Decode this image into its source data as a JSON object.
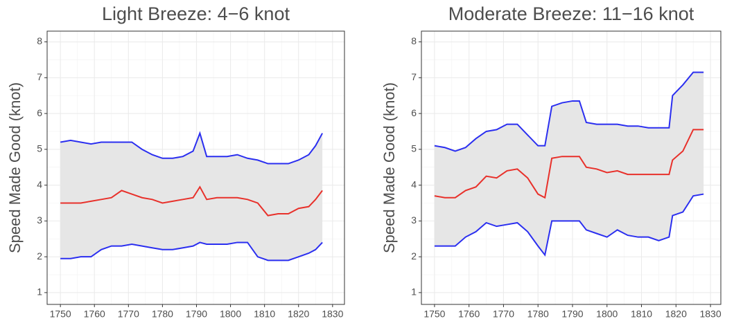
{
  "chart_data": [
    {
      "type": "line",
      "title": "Light Breeze: 4−6 knot",
      "y_label": "Speed Made Good (knot)",
      "x": [
        1750,
        1753,
        1756,
        1759,
        1762,
        1765,
        1768,
        1771,
        1774,
        1777,
        1780,
        1783,
        1786,
        1789,
        1791,
        1793,
        1796,
        1799,
        1802,
        1805,
        1808,
        1811,
        1814,
        1817,
        1820,
        1823,
        1825,
        1827
      ],
      "series": [
        {
          "color": "#2a2ef0",
          "values": [
            5.2,
            5.25,
            5.2,
            5.15,
            5.2,
            5.2,
            5.2,
            5.2,
            5.0,
            4.85,
            4.75,
            4.75,
            4.8,
            4.95,
            5.45,
            4.8,
            4.8,
            4.8,
            4.85,
            4.75,
            4.7,
            4.6,
            4.6,
            4.6,
            4.7,
            4.85,
            5.1,
            5.45
          ]
        },
        {
          "color": "#e8302a",
          "values": [
            3.5,
            3.5,
            3.5,
            3.55,
            3.6,
            3.65,
            3.85,
            3.75,
            3.65,
            3.6,
            3.5,
            3.55,
            3.6,
            3.65,
            3.95,
            3.6,
            3.65,
            3.65,
            3.65,
            3.6,
            3.5,
            3.15,
            3.2,
            3.2,
            3.35,
            3.4,
            3.6,
            3.85
          ]
        },
        {
          "color": "#2a2ef0",
          "values": [
            1.95,
            1.95,
            2.0,
            2.0,
            2.2,
            2.3,
            2.3,
            2.35,
            2.3,
            2.25,
            2.2,
            2.2,
            2.25,
            2.3,
            2.4,
            2.35,
            2.35,
            2.35,
            2.4,
            2.4,
            2.0,
            1.9,
            1.9,
            1.9,
            2.0,
            2.1,
            2.2,
            2.4
          ]
        }
      ],
      "band_color": "#e6e6e6",
      "xlim": [
        1746.1,
        1833.5
      ],
      "xticks": [
        1750,
        1760,
        1770,
        1780,
        1790,
        1800,
        1810,
        1820,
        1830
      ],
      "ylim": [
        0.67,
        8.3
      ],
      "yticks": [
        1,
        2,
        3,
        4,
        5,
        6,
        7,
        8
      ],
      "grid": true
    },
    {
      "type": "line",
      "title": "Moderate Breeze: 11−16 knot",
      "y_label": "Speed Made Good (knot)",
      "x": [
        1750,
        1753,
        1756,
        1759,
        1762,
        1765,
        1768,
        1771,
        1774,
        1777,
        1780,
        1782,
        1784,
        1787,
        1790,
        1792,
        1794,
        1797,
        1800,
        1803,
        1806,
        1809,
        1812,
        1815,
        1818,
        1819,
        1822,
        1825,
        1828
      ],
      "series": [
        {
          "color": "#2a2ef0",
          "values": [
            5.1,
            5.05,
            4.95,
            5.05,
            5.3,
            5.5,
            5.55,
            5.7,
            5.7,
            5.4,
            5.1,
            5.1,
            6.2,
            6.3,
            6.35,
            6.35,
            5.75,
            5.7,
            5.7,
            5.7,
            5.65,
            5.65,
            5.6,
            5.6,
            5.6,
            6.5,
            6.8,
            7.15,
            7.15
          ]
        },
        {
          "color": "#e8302a",
          "values": [
            3.7,
            3.65,
            3.65,
            3.85,
            3.95,
            4.25,
            4.2,
            4.4,
            4.45,
            4.2,
            3.75,
            3.65,
            4.75,
            4.8,
            4.8,
            4.8,
            4.5,
            4.45,
            4.35,
            4.4,
            4.3,
            4.3,
            4.3,
            4.3,
            4.3,
            4.7,
            4.95,
            5.55,
            5.55
          ]
        },
        {
          "color": "#2a2ef0",
          "values": [
            2.3,
            2.3,
            2.3,
            2.55,
            2.7,
            2.95,
            2.85,
            2.9,
            2.95,
            2.7,
            2.3,
            2.05,
            3.0,
            3.0,
            3.0,
            3.0,
            2.75,
            2.65,
            2.55,
            2.75,
            2.6,
            2.55,
            2.55,
            2.45,
            2.55,
            3.15,
            3.25,
            3.7,
            3.75
          ]
        }
      ],
      "band_color": "#e6e6e6",
      "xlim": [
        1746.2,
        1833.0
      ],
      "xticks": [
        1750,
        1760,
        1770,
        1780,
        1790,
        1800,
        1810,
        1820,
        1830
      ],
      "ylim": [
        0.67,
        8.3
      ],
      "yticks": [
        1,
        2,
        3,
        4,
        5,
        6,
        7,
        8
      ],
      "grid": true
    }
  ]
}
